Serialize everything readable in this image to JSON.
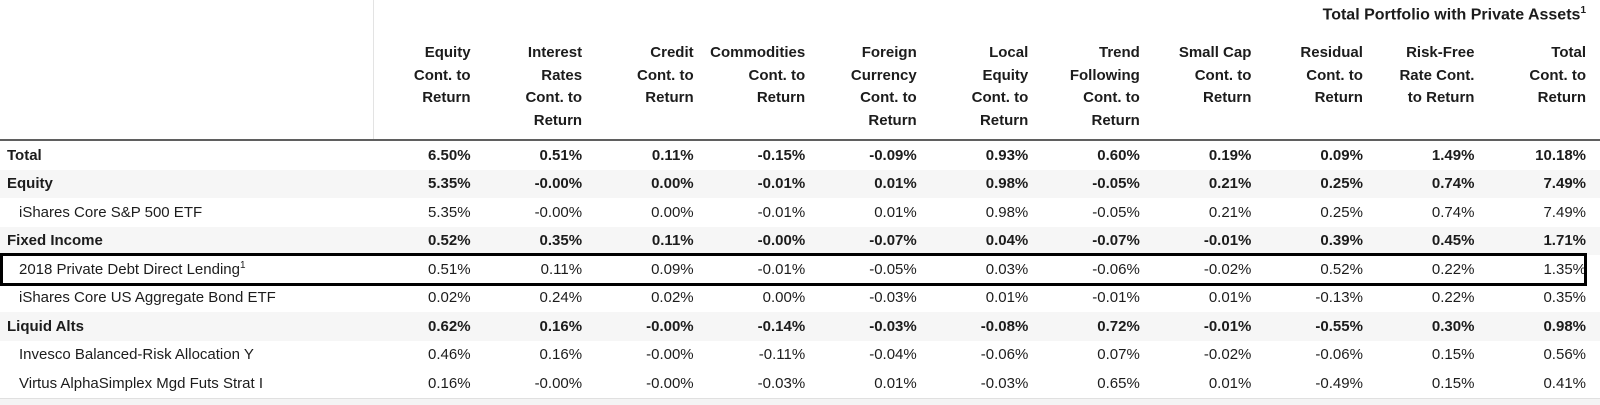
{
  "table": {
    "title": "Total Portfolio with Private Assets",
    "title_superscript": "1",
    "stripe_color": "#f6f6f6",
    "highlight_border_color": "#000000",
    "columns": [
      {
        "label": "Equity Cont. to Return",
        "lines": [
          "Equity",
          "Cont. to",
          "Return"
        ]
      },
      {
        "label": "Interest Rates Cont. to Return",
        "lines": [
          "Interest",
          "Rates",
          "Cont. to",
          "Return"
        ]
      },
      {
        "label": "Credit Cont. to Return",
        "lines": [
          "Credit",
          "Cont. to",
          "Return"
        ]
      },
      {
        "label": "Commodities Cont. to Return",
        "lines": [
          "Commodities",
          "Cont. to",
          "Return"
        ]
      },
      {
        "label": "Foreign Currency Cont. to Return",
        "lines": [
          "Foreign",
          "Currency",
          "Cont. to",
          "Return"
        ]
      },
      {
        "label": "Local Equity Cont. to Return",
        "lines": [
          "Local",
          "Equity",
          "Cont. to",
          "Return"
        ]
      },
      {
        "label": "Trend Following Cont. to Return",
        "lines": [
          "Trend",
          "Following",
          "Cont. to",
          "Return"
        ]
      },
      {
        "label": "Small Cap Cont. to Return",
        "lines": [
          "Small Cap",
          "Cont. to",
          "Return"
        ]
      },
      {
        "label": "Residual Cont. to Return",
        "lines": [
          "Residual",
          "Cont. to",
          "Return"
        ]
      },
      {
        "label": "Risk-Free Rate Cont. to Return",
        "lines": [
          "Risk-Free",
          "Rate Cont.",
          "to Return"
        ]
      },
      {
        "label": "Total Cont. to Return",
        "lines": [
          "Total",
          "Cont. to",
          "Return"
        ]
      }
    ],
    "rows": [
      {
        "label": "Total",
        "superscript": "",
        "bold": true,
        "indent": false,
        "shaded": false,
        "highlighted": false,
        "values": [
          "6.50%",
          "0.51%",
          "0.11%",
          "-0.15%",
          "-0.09%",
          "0.93%",
          "0.60%",
          "0.19%",
          "0.09%",
          "1.49%",
          "10.18%"
        ]
      },
      {
        "label": "Equity",
        "superscript": "",
        "bold": true,
        "indent": false,
        "shaded": true,
        "highlighted": false,
        "values": [
          "5.35%",
          "-0.00%",
          "0.00%",
          "-0.01%",
          "0.01%",
          "0.98%",
          "-0.05%",
          "0.21%",
          "0.25%",
          "0.74%",
          "7.49%"
        ]
      },
      {
        "label": "iShares Core S&P 500 ETF",
        "superscript": "",
        "bold": false,
        "indent": true,
        "shaded": false,
        "highlighted": false,
        "values": [
          "5.35%",
          "-0.00%",
          "0.00%",
          "-0.01%",
          "0.01%",
          "0.98%",
          "-0.05%",
          "0.21%",
          "0.25%",
          "0.74%",
          "7.49%"
        ]
      },
      {
        "label": "Fixed Income",
        "superscript": "",
        "bold": true,
        "indent": false,
        "shaded": true,
        "highlighted": false,
        "values": [
          "0.52%",
          "0.35%",
          "0.11%",
          "-0.00%",
          "-0.07%",
          "0.04%",
          "-0.07%",
          "-0.01%",
          "0.39%",
          "0.45%",
          "1.71%"
        ]
      },
      {
        "label": "2018 Private Debt Direct Lending",
        "superscript": "1",
        "bold": false,
        "indent": true,
        "shaded": false,
        "highlighted": true,
        "values": [
          "0.51%",
          "0.11%",
          "0.09%",
          "-0.01%",
          "-0.05%",
          "0.03%",
          "-0.06%",
          "-0.02%",
          "0.52%",
          "0.22%",
          "1.35%"
        ]
      },
      {
        "label": "iShares Core US Aggregate Bond ETF",
        "superscript": "",
        "bold": false,
        "indent": true,
        "shaded": false,
        "highlighted": false,
        "values": [
          "0.02%",
          "0.24%",
          "0.02%",
          "0.00%",
          "-0.03%",
          "0.01%",
          "-0.01%",
          "0.01%",
          "-0.13%",
          "0.22%",
          "0.35%"
        ]
      },
      {
        "label": "Liquid Alts",
        "superscript": "",
        "bold": true,
        "indent": false,
        "shaded": true,
        "highlighted": false,
        "values": [
          "0.62%",
          "0.16%",
          "-0.00%",
          "-0.14%",
          "-0.03%",
          "-0.08%",
          "0.72%",
          "-0.01%",
          "-0.55%",
          "0.30%",
          "0.98%"
        ]
      },
      {
        "label": "Invesco Balanced-Risk Allocation Y",
        "superscript": "",
        "bold": false,
        "indent": true,
        "shaded": false,
        "highlighted": false,
        "values": [
          "0.46%",
          "0.16%",
          "-0.00%",
          "-0.11%",
          "-0.04%",
          "-0.06%",
          "0.07%",
          "-0.02%",
          "-0.06%",
          "0.15%",
          "0.56%"
        ]
      },
      {
        "label": "Virtus AlphaSimplex Mgd Futs Strat I",
        "superscript": "",
        "bold": false,
        "indent": true,
        "shaded": false,
        "highlighted": false,
        "values": [
          "0.16%",
          "-0.00%",
          "-0.00%",
          "-0.03%",
          "0.01%",
          "-0.03%",
          "0.65%",
          "0.01%",
          "-0.49%",
          "0.15%",
          "0.41%"
        ]
      }
    ]
  }
}
